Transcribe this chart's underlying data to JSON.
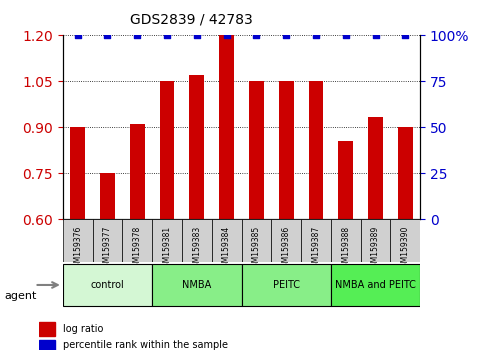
{
  "title": "GDS2839 / 42783",
  "samples": [
    "GSM159376",
    "GSM159377",
    "GSM159378",
    "GSM159381",
    "GSM159383",
    "GSM159384",
    "GSM159385",
    "GSM159386",
    "GSM159387",
    "GSM159388",
    "GSM159389",
    "GSM159390"
  ],
  "log_ratios": [
    0.9,
    0.75,
    0.91,
    1.05,
    1.07,
    1.2,
    1.05,
    1.05,
    1.05,
    0.855,
    0.935,
    0.9
  ],
  "percentile_ranks": [
    100,
    100,
    100,
    100,
    100,
    100,
    100,
    100,
    100,
    100,
    100,
    100
  ],
  "bar_color": "#cc0000",
  "dot_color": "#0000cc",
  "ylim_left": [
    0.6,
    1.2
  ],
  "ylim_right": [
    0,
    100
  ],
  "yticks_left": [
    0.6,
    0.75,
    0.9,
    1.05,
    1.2
  ],
  "yticks_right": [
    0,
    25,
    50,
    75,
    100
  ],
  "groups": [
    {
      "label": "control",
      "start": 0,
      "end": 3,
      "color": "#ccffcc"
    },
    {
      "label": "NMBA",
      "start": 3,
      "end": 6,
      "color": "#66ff66"
    },
    {
      "label": "PEITC",
      "start": 6,
      "end": 9,
      "color": "#66ff66"
    },
    {
      "label": "NMBA and PEITC",
      "start": 9,
      "end": 12,
      "color": "#44dd44"
    }
  ],
  "agent_label": "agent",
  "legend_items": [
    {
      "color": "#cc0000",
      "label": "log ratio"
    },
    {
      "color": "#0000cc",
      "label": "percentile rank within the sample"
    }
  ],
  "background_color": "#ffffff",
  "plot_bg_color": "#ffffff",
  "grid_color": "#000000",
  "tick_label_color_left": "#cc0000",
  "tick_label_color_right": "#0000cc",
  "bar_width": 0.5
}
